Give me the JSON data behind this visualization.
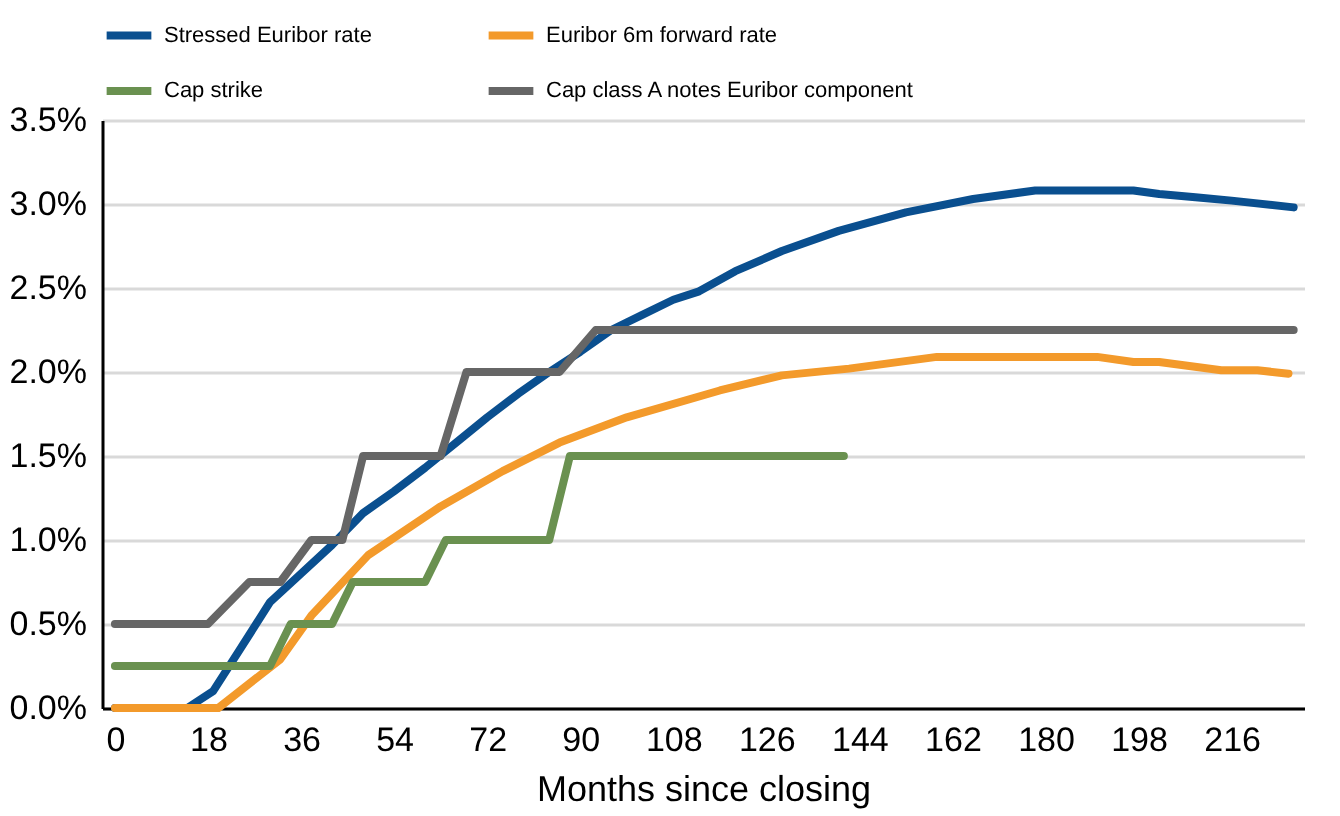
{
  "chart_data": {
    "type": "line",
    "xlabel": "Months since closing",
    "xlim": [
      -2.5,
      230
    ],
    "xticks": [
      0,
      18,
      36,
      54,
      72,
      90,
      108,
      126,
      144,
      162,
      180,
      198,
      216
    ],
    "ylim": [
      0,
      3.5
    ],
    "yticks": [
      {
        "value": 0,
        "label": "0.0%"
      },
      {
        "value": 0.5,
        "label": "0.5%"
      },
      {
        "value": 1,
        "label": "1.0%"
      },
      {
        "value": 1.5,
        "label": "1.5%"
      },
      {
        "value": 2,
        "label": "2.0%"
      },
      {
        "value": 2.5,
        "label": "2.5%"
      },
      {
        "value": 3,
        "label": "3.0%"
      },
      {
        "value": 3.5,
        "label": "3.5%"
      }
    ],
    "grid": "y",
    "legend": "top",
    "marker": "none",
    "line_style": "solid",
    "series": [
      {
        "name": "Stressed Euribor rate",
        "color": "#0a4f8f",
        "x": [
          0,
          14,
          19,
          24,
          30,
          36,
          42,
          48,
          54,
          60,
          66,
          72,
          78,
          84,
          90,
          96,
          102,
          108,
          113,
          120,
          129,
          140,
          153,
          166,
          178,
          190,
          197,
          202,
          209,
          216,
          228
        ],
        "values": [
          0,
          0,
          0.1,
          0.34,
          0.63,
          0.8,
          0.97,
          1.16,
          1.29,
          1.43,
          1.58,
          1.73,
          1.87,
          2.0,
          2.12,
          2.25,
          2.34,
          2.43,
          2.48,
          2.6,
          2.72,
          2.84,
          2.95,
          3.03,
          3.08,
          3.08,
          3.08,
          3.06,
          3.04,
          3.02,
          2.98
        ]
      },
      {
        "name": "Euribor 6m forward rate",
        "color": "#f39a2b",
        "x": [
          0,
          20,
          32,
          38,
          49,
          63,
          75,
          86,
          99,
          117,
          129,
          142,
          159,
          190,
          197,
          202,
          214,
          221,
          227
        ],
        "values": [
          0,
          0,
          0.29,
          0.55,
          0.91,
          1.2,
          1.41,
          1.58,
          1.73,
          1.89,
          1.98,
          2.02,
          2.09,
          2.09,
          2.06,
          2.06,
          2.01,
          2.01,
          1.99
        ]
      },
      {
        "name": "Cap strike",
        "color": "#6a9150",
        "x": [
          0,
          30,
          34,
          42,
          46,
          60,
          64,
          84,
          88,
          141
        ],
        "values": [
          0.25,
          0.25,
          0.5,
          0.5,
          0.75,
          0.75,
          1.0,
          1.0,
          1.5,
          1.5
        ]
      },
      {
        "name": "Cap class A notes Euribor component",
        "color": "#666666",
        "x": [
          0,
          18,
          26,
          32,
          38,
          44,
          48,
          63,
          68,
          86,
          93,
          228
        ],
        "values": [
          0.5,
          0.5,
          0.75,
          0.75,
          1.0,
          1.0,
          1.5,
          1.5,
          2.0,
          2.0,
          2.25,
          2.25
        ]
      }
    ]
  }
}
